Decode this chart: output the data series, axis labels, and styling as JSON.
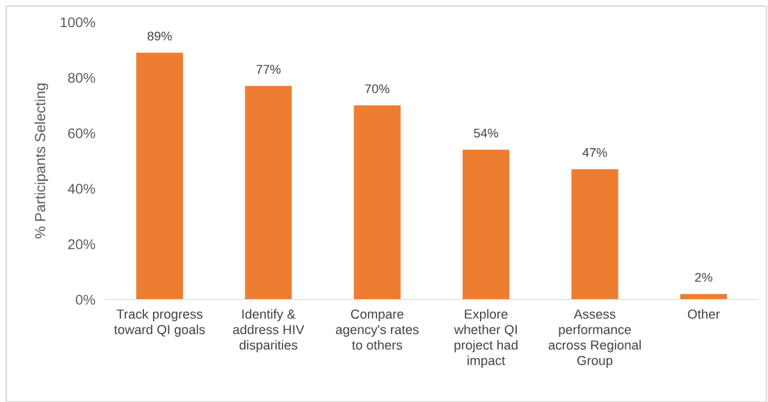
{
  "chart_data": {
    "type": "bar",
    "ylabel": "% Participants Selecting",
    "categories": [
      "Track progress\ntoward QI goals",
      "Identify &\naddress HIV\ndisparities",
      "Compare\nagency's rates\nto others",
      "Explore\nwhether QI\nproject had\nimpact",
      "Assess\nperformance\nacross Regional\nGroup",
      "Other"
    ],
    "values": [
      89,
      77,
      70,
      54,
      47,
      2
    ],
    "value_labels": [
      "89%",
      "77%",
      "70%",
      "54%",
      "47%",
      "2%"
    ],
    "color": "#ed7d31",
    "ylim": [
      0,
      100
    ],
    "yticks": [
      {
        "value": 0,
        "label": "0%"
      },
      {
        "value": 20,
        "label": "20%"
      },
      {
        "value": 40,
        "label": "40%"
      },
      {
        "value": 60,
        "label": "60%"
      },
      {
        "value": 80,
        "label": "80%"
      },
      {
        "value": 100,
        "label": "100%"
      }
    ],
    "grid": false,
    "legend": false
  }
}
